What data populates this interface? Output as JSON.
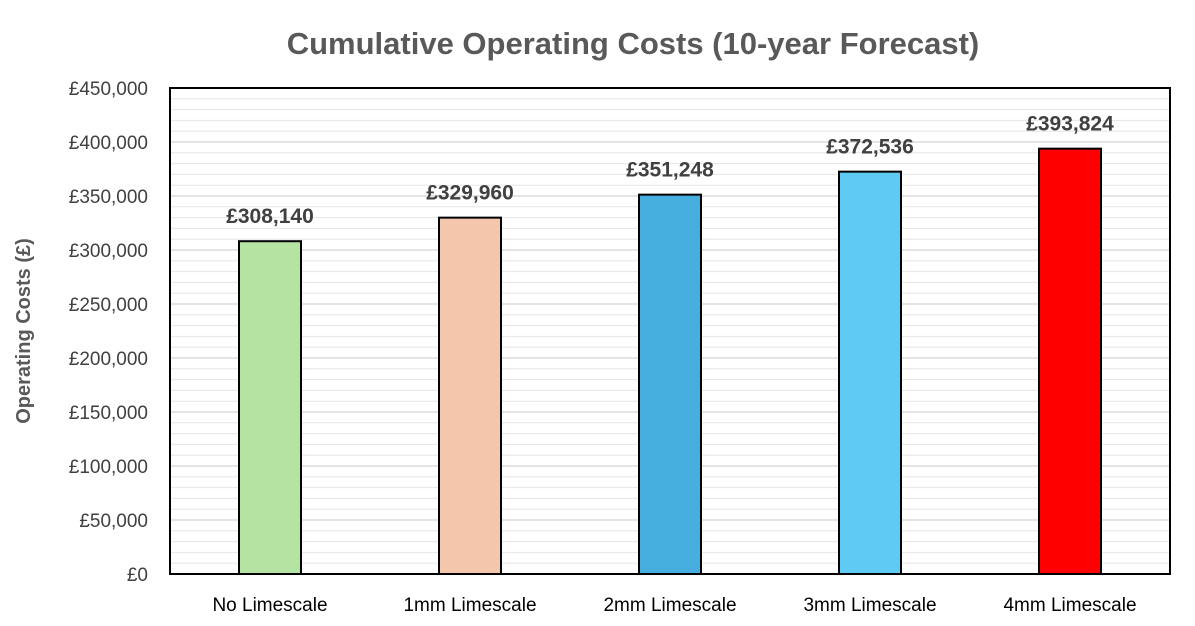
{
  "chart_data": {
    "type": "bar",
    "title": "Cumulative Operating Costs (10-year Forecast)",
    "xlabel": "",
    "ylabel": "Operating Costs (£)",
    "ylim": [
      0,
      450000
    ],
    "y_tick_step": 50000,
    "minor_gridlines": true,
    "categories": [
      "No Limescale",
      "1mm Limescale",
      "2mm Limescale",
      "3mm Limescale",
      "4mm Limescale"
    ],
    "values": [
      308140,
      329960,
      351248,
      372536,
      393824
    ],
    "data_labels": [
      "£308,140",
      "£329,960",
      "£351,248",
      "£372,536",
      "£393,824"
    ],
    "y_tick_labels": [
      "£0",
      "£50,000",
      "£100,000",
      "£150,000",
      "£200,000",
      "£250,000",
      "£300,000",
      "£350,000",
      "£400,000",
      "£450,000"
    ],
    "colors": [
      "#b5e3a2",
      "#f4c6ab",
      "#47aee0",
      "#5fcaf3",
      "#ff0000"
    ]
  }
}
